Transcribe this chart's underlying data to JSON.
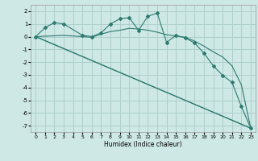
{
  "xlabel": "Humidex (Indice chaleur)",
  "bg_color": "#cde8e5",
  "grid_color": "#aecfcc",
  "line_color": "#2d7a6e",
  "xlim": [
    -0.5,
    23.5
  ],
  "ylim": [
    -7.5,
    2.5
  ],
  "yticks": [
    -7,
    -6,
    -5,
    -4,
    -3,
    -2,
    -1,
    0,
    1,
    2
  ],
  "xticks": [
    0,
    1,
    2,
    3,
    4,
    5,
    6,
    7,
    8,
    9,
    10,
    11,
    12,
    13,
    14,
    15,
    16,
    17,
    18,
    19,
    20,
    21,
    22,
    23
  ],
  "line1": {
    "x": [
      0,
      23
    ],
    "y": [
      0,
      -7.2
    ],
    "marker": false
  },
  "line2": {
    "x": [
      0,
      23
    ],
    "y": [
      0,
      -7.2
    ],
    "marker": false
  },
  "line3": {
    "x": [
      0,
      1,
      2,
      3,
      5,
      6,
      7,
      8,
      9,
      10,
      11,
      12,
      13,
      14,
      15,
      16,
      17,
      18,
      19,
      20,
      21,
      22,
      23
    ],
    "y": [
      0,
      0.7,
      1.1,
      1.0,
      0.1,
      0.0,
      0.3,
      1.0,
      1.4,
      1.5,
      0.5,
      1.6,
      1.85,
      -0.45,
      0.1,
      -0.1,
      -0.5,
      -1.3,
      -2.3,
      -3.05,
      -3.6,
      -5.5,
      -7.2
    ],
    "marker": true
  },
  "line4": {
    "x": [
      0,
      3,
      5,
      6,
      7,
      8,
      9,
      10,
      11,
      12,
      13,
      14,
      15,
      16,
      17,
      18,
      19,
      20,
      21,
      22,
      23
    ],
    "y": [
      0,
      0.1,
      0.0,
      -0.05,
      0.2,
      0.4,
      0.5,
      0.65,
      0.6,
      0.5,
      0.35,
      0.15,
      0.05,
      -0.05,
      -0.35,
      -0.75,
      -1.2,
      -1.6,
      -2.3,
      -3.8,
      -7.2
    ],
    "marker": false
  }
}
